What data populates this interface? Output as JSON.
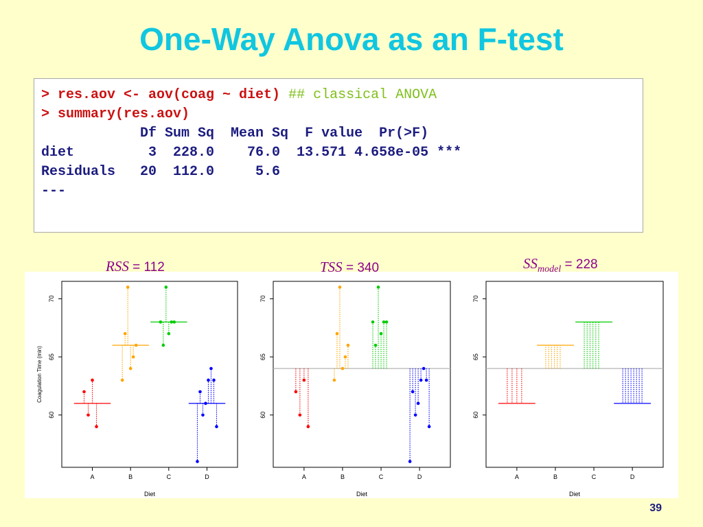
{
  "slide": {
    "title": "One-Way Anova as an F-test",
    "page_number": "39"
  },
  "code": {
    "line1_cmd": "> res.aov <- aov(coag ~ diet)",
    "line1_comment": "## classical ANOVA",
    "line2_cmd": "> summary(res.aov)",
    "header": "            Df Sum Sq  Mean Sq  F value  Pr(>F)",
    "row_diet": "diet         3  228.0    76.0  13.571 4.658e-05 ***",
    "row_resid": "Residuals   20  112.0     5.6",
    "separator": "---"
  },
  "labels": {
    "rss_name": "RSS",
    "rss_eq": " = ",
    "rss_value": "112",
    "tss_name": "TSS",
    "tss_eq": " = ",
    "tss_value": "340",
    "ssm_name": "SS",
    "ssm_sub": "model",
    "ssm_eq": " = ",
    "ssm_value": "228"
  },
  "chart_data": [
    {
      "type": "scatter",
      "xlabel": "Diet",
      "ylabel": "Coagulation Time (min)",
      "categories": [
        "A",
        "B",
        "C",
        "D"
      ],
      "yticks": [
        60,
        65,
        70
      ],
      "ylim": [
        55.5,
        71.5
      ],
      "group_means": [
        61,
        66,
        68,
        61
      ],
      "points": {
        "A": [
          62,
          60,
          63,
          59
        ],
        "B": [
          63,
          67,
          71,
          64,
          65,
          66
        ],
        "C": [
          68,
          66,
          71,
          67,
          68,
          68
        ],
        "D": [
          56,
          62,
          60,
          61,
          63,
          64,
          63,
          59
        ]
      },
      "colors": [
        "#ff0000",
        "#ffa500",
        "#00cc00",
        "#0000ff"
      ]
    },
    {
      "type": "scatter",
      "xlabel": "Diet",
      "ylabel": "",
      "categories": [
        "A",
        "B",
        "C",
        "D"
      ],
      "yticks": [
        60,
        65,
        70
      ],
      "ylim": [
        55.5,
        71.5
      ],
      "grand_mean": 64,
      "points": {
        "A": [
          62,
          60,
          63,
          59
        ],
        "B": [
          63,
          67,
          71,
          64,
          65,
          66
        ],
        "C": [
          68,
          66,
          71,
          67,
          68,
          68
        ],
        "D": [
          56,
          62,
          60,
          61,
          63,
          64,
          63,
          59
        ]
      },
      "colors": [
        "#ff0000",
        "#ffa500",
        "#00cc00",
        "#0000ff"
      ]
    },
    {
      "type": "line",
      "xlabel": "Diet",
      "ylabel": "",
      "categories": [
        "A",
        "B",
        "C",
        "D"
      ],
      "yticks": [
        60,
        65,
        70
      ],
      "ylim": [
        55.5,
        71.5
      ],
      "grand_mean": 64,
      "group_means": [
        61,
        66,
        68,
        61
      ],
      "group_sizes": [
        4,
        6,
        6,
        8
      ],
      "colors": [
        "#ff0000",
        "#ffa500",
        "#00cc00",
        "#0000ff"
      ]
    }
  ]
}
